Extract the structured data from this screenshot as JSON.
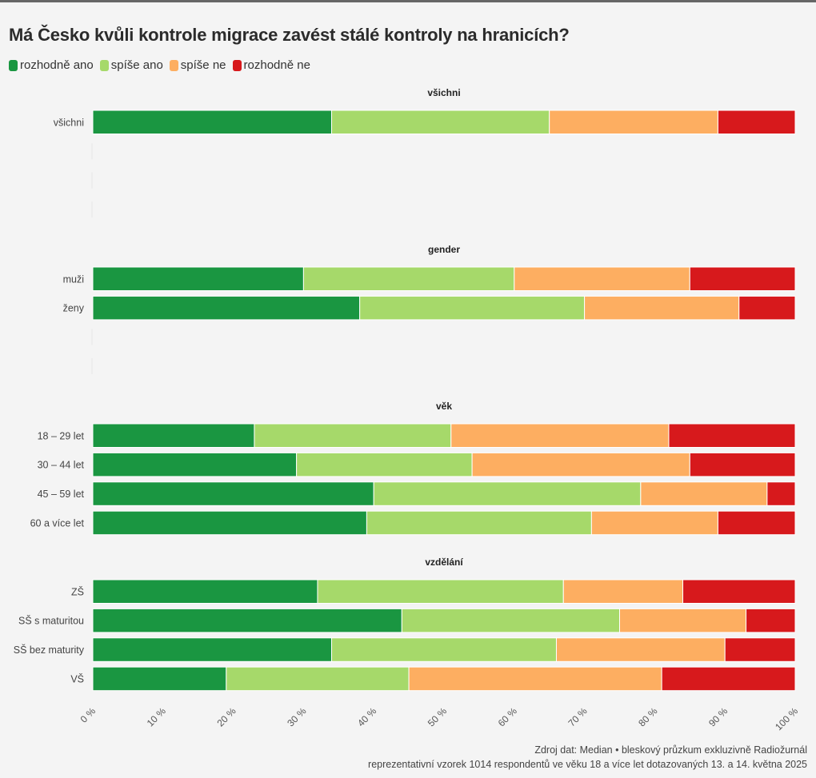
{
  "title": "Má Česko kvůli kontrole migrace zavést stálé kontroly na hranicích?",
  "legend": [
    {
      "label": "rozhodně ano",
      "color": "#1a9641"
    },
    {
      "label": "spíše ano",
      "color": "#a6d96a"
    },
    {
      "label": "spíše ne",
      "color": "#fdae61"
    },
    {
      "label": "rozhodně ne",
      "color": "#d7191c"
    }
  ],
  "source": {
    "line1": "Zdroj dat: Median • bleskový průzkum exkluzivně Radiožurnál",
    "line2": "reprezentativní vzorek 1014 respondentů ve věku 18 a více let dotazovaných 13. a 14. května 2025"
  },
  "chart_data": {
    "type": "bar",
    "orientation": "horizontal",
    "stacked": true,
    "xlim": [
      0,
      100
    ],
    "x_ticks": [
      "0 %",
      "10 %",
      "20 %",
      "30 %",
      "40 %",
      "50 %",
      "60 %",
      "70 %",
      "80 %",
      "90 %",
      "100 %"
    ],
    "series_names": [
      "rozhodně ano",
      "spíše ano",
      "spíše ne",
      "rozhodně ne"
    ],
    "groups": [
      {
        "name": "všichni",
        "rows": [
          {
            "label": "všichni",
            "values": [
              34,
              31,
              24,
              11
            ]
          }
        ]
      },
      {
        "name": "gender",
        "rows": [
          {
            "label": "muži",
            "values": [
              30,
              30,
              25,
              15
            ]
          },
          {
            "label": "ženy",
            "values": [
              38,
              32,
              22,
              8
            ]
          }
        ]
      },
      {
        "name": "věk",
        "rows": [
          {
            "label": "18 – 29 let",
            "values": [
              23,
              28,
              31,
              18
            ]
          },
          {
            "label": "30 – 44 let",
            "values": [
              29,
              25,
              31,
              15
            ]
          },
          {
            "label": "45 – 59 let",
            "values": [
              40,
              38,
              18,
              4
            ]
          },
          {
            "label": "60 a více let",
            "values": [
              39,
              32,
              18,
              11
            ]
          }
        ]
      },
      {
        "name": "vzdělání",
        "rows": [
          {
            "label": "ZŠ",
            "values": [
              32,
              35,
              17,
              16
            ]
          },
          {
            "label": "SŠ s maturitou",
            "values": [
              44,
              31,
              18,
              7
            ]
          },
          {
            "label": "SŠ bez maturity",
            "values": [
              34,
              32,
              24,
              10
            ]
          },
          {
            "label": "VŠ",
            "values": [
              19,
              26,
              36,
              19
            ]
          }
        ]
      }
    ]
  }
}
